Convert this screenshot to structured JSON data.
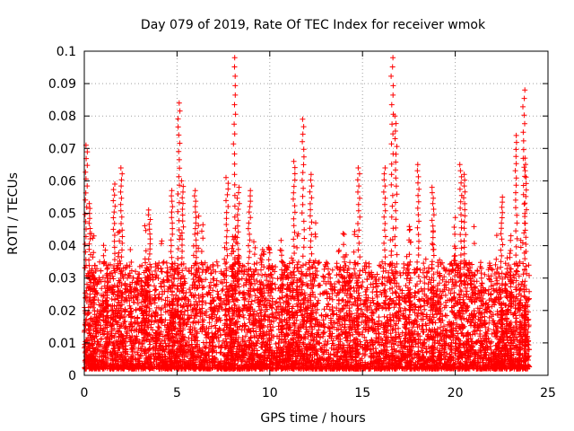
{
  "chart_data": {
    "type": "scatter",
    "title": "Day 079 of 2019, Rate Of TEC Index for receiver wmok",
    "xlabel": "GPS time / hours",
    "ylabel": "ROTI / TECUs",
    "xlim": [
      0,
      25
    ],
    "ylim": [
      0,
      0.1
    ],
    "xticks": [
      0,
      5,
      10,
      15,
      20,
      25
    ],
    "xtick_labels": [
      "0",
      "5",
      "10",
      "15",
      "20",
      "25"
    ],
    "yticks": [
      0,
      0.01,
      0.02,
      0.03,
      0.04,
      0.05,
      0.06,
      0.07,
      0.08,
      0.09,
      0.1
    ],
    "ytick_labels": [
      "0",
      "0.01",
      "0.02",
      "0.03",
      "0.04",
      "0.05",
      "0.06",
      "0.07",
      "0.08",
      "0.09",
      "0.1"
    ],
    "grid": true,
    "marker": "plus",
    "color": "#ff0000",
    "x_data_range": [
      0,
      24
    ],
    "peaks": [
      {
        "x": 0.1,
        "y": 0.071
      },
      {
        "x": 0.3,
        "y": 0.053
      },
      {
        "x": 1.6,
        "y": 0.059
      },
      {
        "x": 2.0,
        "y": 0.064
      },
      {
        "x": 3.5,
        "y": 0.051
      },
      {
        "x": 4.7,
        "y": 0.057
      },
      {
        "x": 5.1,
        "y": 0.084
      },
      {
        "x": 5.3,
        "y": 0.06
      },
      {
        "x": 6.0,
        "y": 0.057
      },
      {
        "x": 7.7,
        "y": 0.061
      },
      {
        "x": 8.1,
        "y": 0.098
      },
      {
        "x": 8.3,
        "y": 0.058
      },
      {
        "x": 8.9,
        "y": 0.057
      },
      {
        "x": 11.8,
        "y": 0.079
      },
      {
        "x": 12.2,
        "y": 0.062
      },
      {
        "x": 11.3,
        "y": 0.066
      },
      {
        "x": 14.8,
        "y": 0.064
      },
      {
        "x": 16.2,
        "y": 0.064
      },
      {
        "x": 16.6,
        "y": 0.098
      },
      {
        "x": 16.8,
        "y": 0.08
      },
      {
        "x": 18.0,
        "y": 0.065
      },
      {
        "x": 18.8,
        "y": 0.058
      },
      {
        "x": 20.3,
        "y": 0.065
      },
      {
        "x": 20.5,
        "y": 0.062
      },
      {
        "x": 22.5,
        "y": 0.055
      },
      {
        "x": 23.3,
        "y": 0.074
      },
      {
        "x": 23.7,
        "y": 0.088
      },
      {
        "x": 23.8,
        "y": 0.067
      }
    ],
    "background_level": {
      "typical_min": 0.002,
      "typical_max": 0.035
    }
  }
}
